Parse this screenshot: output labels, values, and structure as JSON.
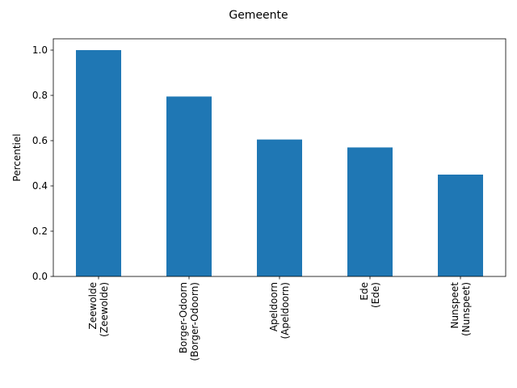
{
  "chart_data": {
    "type": "bar",
    "title": "Gemeente",
    "xlabel": "",
    "ylabel": "Percentiel",
    "categories": [
      [
        "Zeewolde",
        "(Zeewolde)"
      ],
      [
        "Borger-Odoorn",
        "(Borger-Odoorn)"
      ],
      [
        "Apeldoorn",
        "(Apeldoorn)"
      ],
      [
        "Ede",
        "(Ede)"
      ],
      [
        "Nunspeet",
        "(Nunspeet)"
      ]
    ],
    "values": [
      1.0,
      0.795,
      0.605,
      0.57,
      0.45
    ],
    "ylim": [
      0,
      1.05
    ],
    "yticks": [
      "0.0",
      "0.2",
      "0.4",
      "0.6",
      "0.8",
      "1.0"
    ],
    "bar_color": "#1f77b4",
    "grid": false,
    "legend": "none"
  }
}
